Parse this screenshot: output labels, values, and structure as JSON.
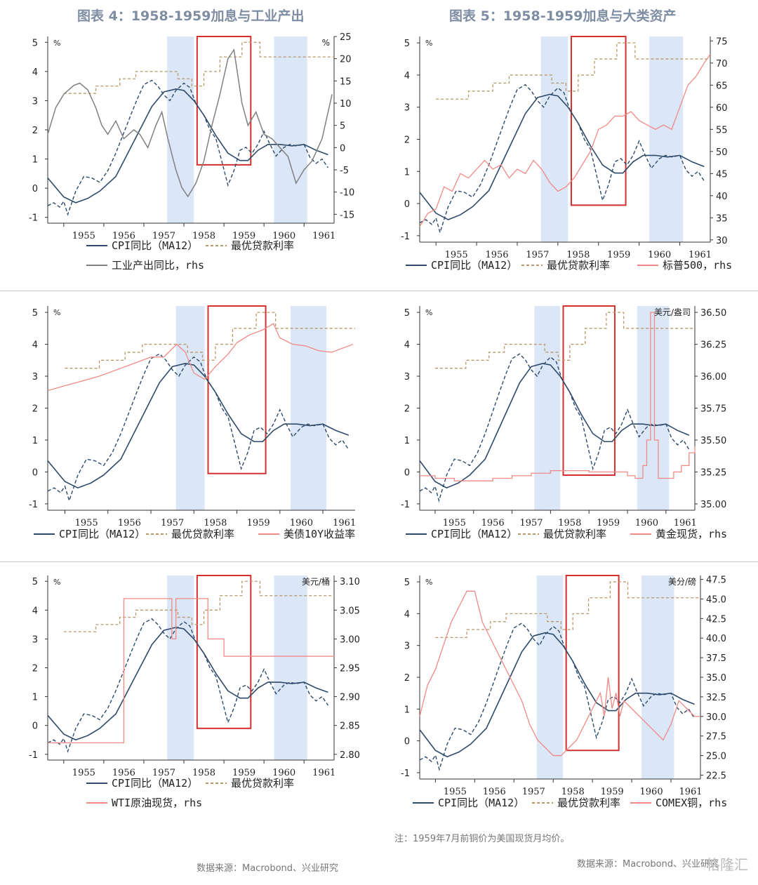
{
  "fig4_title": "图表 4：1958-1959加息与工业产出",
  "fig5_title": "图表 5：1958-1959加息与大类资产",
  "footer_left": "数据来源：Macrobond、兴业研究",
  "note": "注：1959年7月前铜价为美国现货月均价。",
  "footer_right": "数据来源：Macrobond、兴业研究",
  "watermark": "格隆汇",
  "colors": {
    "cpi": "#2e4a6b",
    "rate": "#b89868",
    "gray": "#808080",
    "red_line": "#f08a86",
    "shade": "#dbe6f7",
    "box": "#d32f2f"
  },
  "chart_data": [
    {
      "type": "line",
      "ylabel_left_unit": "%",
      "ylabel_right_unit": "%",
      "ylim": [
        -1.2,
        5.2
      ],
      "y2lim": [
        -17,
        25
      ],
      "yticks": [
        -1,
        0,
        1,
        2,
        3,
        4,
        5
      ],
      "y2ticks": [
        -15,
        -10,
        -5,
        0,
        5,
        10,
        15,
        20,
        25
      ],
      "xticks": [
        "1955",
        "1956",
        "1957",
        "1958",
        "1959",
        "1960",
        "1961"
      ],
      "xlim": [
        1954.6,
        1961.75
      ],
      "recession_shading": [
        [
          1957.58,
          1958.25
        ],
        [
          1960.25,
          1961.08
        ]
      ],
      "highlight_box": {
        "x": [
          1958.33,
          1959.67
        ],
        "y": [
          0.8,
          5.2
        ]
      },
      "series": [
        {
          "name": "CPI同比（MA12）",
          "style": "solid",
          "axis": "left",
          "x": [
            1954.6,
            1955.0,
            1955.3,
            1955.6,
            1955.9,
            1956.3,
            1956.6,
            1956.9,
            1957.2,
            1957.5,
            1957.8,
            1958.0,
            1958.25,
            1958.5,
            1958.8,
            1959.1,
            1959.4,
            1959.6,
            1959.85,
            1960.1,
            1960.4,
            1960.7,
            1961.0,
            1961.3,
            1961.6
          ],
          "y": [
            0.35,
            -0.3,
            -0.5,
            -0.35,
            -0.1,
            0.4,
            1.2,
            2.0,
            2.8,
            3.3,
            3.4,
            3.35,
            3.0,
            2.5,
            1.8,
            1.2,
            0.95,
            0.95,
            1.3,
            1.5,
            1.5,
            1.45,
            1.5,
            1.3,
            1.15
          ]
        },
        {
          "name": "CPI同比",
          "style": "dashed",
          "axis": "left",
          "x": [
            1954.6,
            1954.75,
            1954.9,
            1955.0,
            1955.1,
            1955.3,
            1955.5,
            1955.7,
            1955.9,
            1956.1,
            1956.3,
            1956.5,
            1956.7,
            1956.85,
            1957.0,
            1957.2,
            1957.35,
            1957.5,
            1957.65,
            1957.8,
            1958.0,
            1958.15,
            1958.3,
            1958.5,
            1958.65,
            1958.8,
            1958.95,
            1959.1,
            1959.25,
            1959.4,
            1959.55,
            1959.7,
            1959.85,
            1960.0,
            1960.15,
            1960.3,
            1960.5,
            1960.65,
            1960.8,
            1961.0,
            1961.15,
            1961.3,
            1961.45,
            1961.6
          ],
          "y": [
            -0.6,
            -0.5,
            -0.65,
            -0.45,
            -0.9,
            -0.1,
            0.4,
            0.35,
            0.2,
            0.6,
            1.2,
            1.9,
            2.6,
            3.1,
            3.55,
            3.7,
            3.5,
            3.2,
            3.0,
            3.35,
            3.6,
            3.45,
            2.9,
            2.5,
            2.0,
            1.7,
            0.9,
            0.1,
            0.6,
            1.3,
            1.4,
            1.2,
            1.5,
            1.95,
            1.5,
            1.1,
            1.4,
            1.5,
            1.45,
            1.5,
            1.05,
            0.85,
            1.0,
            0.7
          ]
        },
        {
          "name": "最优贷款利率",
          "style": "dashed-step",
          "axis": "left",
          "x": [
            1955.0,
            1955.6,
            1955.8,
            1956.2,
            1956.4,
            1956.8,
            1957.6,
            1957.85,
            1958.2,
            1958.5,
            1958.9,
            1959.2,
            1959.45,
            1959.9,
            1961.75
          ],
          "y": [
            3.25,
            3.25,
            3.5,
            3.5,
            3.75,
            4.0,
            4.0,
            3.75,
            3.5,
            4.0,
            4.5,
            4.5,
            5.0,
            4.5,
            4.5
          ]
        },
        {
          "name": "工业产出同比，rhs",
          "style": "solid",
          "axis": "right",
          "x": [
            1954.6,
            1954.8,
            1955.0,
            1955.25,
            1955.4,
            1955.6,
            1955.8,
            1955.95,
            1956.1,
            1956.3,
            1956.5,
            1956.75,
            1956.9,
            1957.1,
            1957.3,
            1957.45,
            1957.6,
            1957.8,
            1957.95,
            1958.1,
            1958.3,
            1958.5,
            1958.7,
            1958.9,
            1959.1,
            1959.25,
            1959.45,
            1959.6,
            1959.8,
            1960.0,
            1960.2,
            1960.4,
            1960.6,
            1960.8,
            1961.0,
            1961.2,
            1961.45,
            1961.7
          ],
          "y": [
            3,
            9,
            12,
            14,
            14.5,
            13,
            9,
            5,
            3,
            6,
            2,
            4,
            3,
            0,
            5,
            8,
            2,
            -5,
            -9,
            -11,
            -8,
            -3,
            5,
            12,
            20,
            22,
            10,
            5,
            8,
            3,
            2,
            0,
            -2,
            -8,
            -5,
            -3,
            2,
            12
          ]
        }
      ],
      "legend": [
        "CPI同比（MA12）",
        "最优贷款利率",
        "工业产出同比，rhs"
      ]
    },
    {
      "type": "line",
      "ylim": [
        -1.2,
        5.2
      ],
      "y2lim": [
        29.5,
        76
      ],
      "yticks": [
        -1,
        0,
        1,
        2,
        3,
        4,
        5
      ],
      "y2ticks": [
        30,
        35,
        40,
        45,
        50,
        55,
        60,
        65,
        70,
        75
      ],
      "xticks": [
        "1955",
        "1956",
        "1957",
        "1958",
        "1959",
        "1960",
        "1961"
      ],
      "xlim": [
        1954.6,
        1961.75
      ],
      "recession_shading": [
        [
          1957.58,
          1958.25
        ],
        [
          1960.25,
          1961.08
        ]
      ],
      "highlight_box": {
        "x": [
          1958.33,
          1959.67
        ],
        "y": [
          -0.05,
          5.2
        ]
      },
      "series": [
        {
          "name": "标普500，rhs",
          "style": "solid",
          "axis": "right",
          "x": [
            1954.6,
            1954.8,
            1955.0,
            1955.2,
            1955.4,
            1955.6,
            1955.8,
            1956.0,
            1956.2,
            1956.4,
            1956.6,
            1956.8,
            1957.0,
            1957.2,
            1957.4,
            1957.6,
            1957.8,
            1958.0,
            1958.2,
            1958.4,
            1958.6,
            1958.8,
            1959.0,
            1959.2,
            1959.4,
            1959.6,
            1959.8,
            1960.0,
            1960.2,
            1960.4,
            1960.6,
            1960.8,
            1961.0,
            1961.2,
            1961.4,
            1961.6,
            1961.75
          ],
          "y": [
            33,
            36,
            37,
            42,
            41,
            45,
            44,
            46,
            48,
            46,
            47,
            44,
            46,
            45,
            48,
            46,
            43,
            41,
            42,
            44,
            47,
            50,
            55,
            56,
            58,
            58,
            59,
            57,
            56,
            55,
            56,
            55,
            60,
            65,
            67,
            70,
            72
          ]
        }
      ],
      "legend": [
        "CPI同比（MA12）",
        "最优贷款利率",
        "标普500，rhs"
      ]
    },
    {
      "type": "line",
      "ylim": [
        -1.2,
        5.2
      ],
      "yticks": [
        -1,
        0,
        1,
        2,
        3,
        4,
        5
      ],
      "xticks": [
        "1955",
        "1956",
        "1957",
        "1958",
        "1959",
        "1960",
        "1961"
      ],
      "xlim": [
        1954.6,
        1961.75
      ],
      "recession_shading": [
        [
          1957.58,
          1958.25
        ],
        [
          1960.25,
          1961.08
        ]
      ],
      "highlight_box": {
        "x": [
          1958.33,
          1959.67
        ],
        "y": [
          -0.05,
          5.2
        ]
      },
      "series": [
        {
          "name": "美债10Y收益率",
          "style": "solid",
          "axis": "left",
          "x": [
            1954.6,
            1955.0,
            1955.4,
            1955.8,
            1956.2,
            1956.6,
            1957.0,
            1957.3,
            1957.6,
            1957.8,
            1958.0,
            1958.25,
            1958.5,
            1958.8,
            1959.0,
            1959.3,
            1959.6,
            1959.85,
            1960.0,
            1960.3,
            1960.6,
            1960.9,
            1961.2,
            1961.5,
            1961.7
          ],
          "y": [
            2.55,
            2.7,
            2.85,
            3.0,
            3.2,
            3.4,
            3.6,
            3.6,
            4.0,
            3.75,
            3.1,
            2.9,
            3.3,
            3.7,
            4.05,
            4.3,
            4.45,
            4.65,
            4.2,
            4.0,
            3.95,
            3.8,
            3.75,
            3.9,
            4.0
          ]
        }
      ],
      "legend": [
        "CPI同比（MA12）",
        "最优贷款利率",
        "美债10Y收益率"
      ]
    },
    {
      "type": "line",
      "ylim": [
        -1.2,
        5.2
      ],
      "y2lim": [
        34.95,
        36.55
      ],
      "yticks": [
        -1,
        0,
        1,
        2,
        3,
        4,
        5
      ],
      "y2ticks": [
        "35.00",
        "35.25",
        "35.50",
        "35.75",
        "36.00",
        "36.25",
        "36.50"
      ],
      "y2_unit": "美元/盎司",
      "xticks": [
        "1955",
        "1956",
        "1957",
        "1958",
        "1959",
        "1960",
        "1961"
      ],
      "xlim": [
        1954.6,
        1961.75
      ],
      "recession_shading": [
        [
          1957.58,
          1958.25
        ],
        [
          1960.25,
          1961.08
        ]
      ],
      "highlight_box": {
        "x": [
          1958.33,
          1959.67
        ],
        "y": [
          -0.1,
          5.2
        ]
      },
      "series": [
        {
          "name": "黄金现货，rhs",
          "style": "step",
          "axis": "right",
          "x": [
            1954.6,
            1955.0,
            1955.5,
            1956.0,
            1956.5,
            1957.0,
            1957.5,
            1958.0,
            1958.5,
            1959.0,
            1959.5,
            1960.0,
            1960.2,
            1960.4,
            1960.5,
            1960.6,
            1960.7,
            1960.8,
            1961.0,
            1961.2,
            1961.4,
            1961.6,
            1961.75
          ],
          "y": [
            35.22,
            35.2,
            35.18,
            35.18,
            35.2,
            35.22,
            35.24,
            35.26,
            35.26,
            35.25,
            35.25,
            35.22,
            35.2,
            35.3,
            35.5,
            36.5,
            35.5,
            35.2,
            35.2,
            35.25,
            35.3,
            35.4,
            35.45
          ]
        }
      ],
      "legend": [
        "CPI同比（MA12）",
        "最优贷款利率",
        "黄金现货，rhs"
      ]
    },
    {
      "type": "line",
      "ylim": [
        -1.2,
        5.2
      ],
      "y2lim": [
        2.79,
        3.11
      ],
      "yticks": [
        -1,
        0,
        1,
        2,
        3,
        4,
        5
      ],
      "y2ticks": [
        "2.80",
        "2.85",
        "2.90",
        "2.95",
        "3.00",
        "3.05",
        "3.10"
      ],
      "y2_unit": "美元/桶",
      "xticks": [
        "1955",
        "1956",
        "1957",
        "1958",
        "1959",
        "1960",
        "1961"
      ],
      "xlim": [
        1954.6,
        1961.75
      ],
      "recession_shading": [
        [
          1957.58,
          1958.25
        ],
        [
          1960.25,
          1961.08
        ]
      ],
      "highlight_box": {
        "x": [
          1958.33,
          1959.67
        ],
        "y": [
          -0.1,
          5.2
        ]
      },
      "series": [
        {
          "name": "WTI原油现货，rhs",
          "style": "step",
          "axis": "right",
          "x": [
            1954.6,
            1956.3,
            1956.5,
            1957.6,
            1957.7,
            1957.8,
            1957.85,
            1957.9,
            1958.25,
            1958.5,
            1958.6,
            1958.9,
            1959.0,
            1961.75
          ],
          "y": [
            2.82,
            2.82,
            3.07,
            3.07,
            3.0,
            3.07,
            3.07,
            3.07,
            3.07,
            3.07,
            3.0,
            3.0,
            2.97,
            2.97
          ]
        }
      ],
      "legend": [
        "CPI同比（MA12）",
        "最优贷款利率",
        "WTI原油现货，rhs"
      ]
    },
    {
      "type": "line",
      "ylim": [
        -1.2,
        5.2
      ],
      "y2lim": [
        22,
        48
      ],
      "yticks": [
        -1,
        0,
        1,
        2,
        3,
        4,
        5
      ],
      "y2ticks": [
        "22.5",
        "25.0",
        "27.5",
        "30.0",
        "32.5",
        "35.0",
        "37.5",
        "40.0",
        "42.5",
        "45.0",
        "47.5"
      ],
      "y2_unit": "美分/磅",
      "xticks": [
        "1955",
        "1956",
        "1957",
        "1958",
        "1959",
        "1960",
        "1961"
      ],
      "xlim": [
        1954.6,
        1961.75
      ],
      "recession_shading": [
        [
          1957.58,
          1958.25
        ],
        [
          1960.25,
          1961.08
        ]
      ],
      "highlight_box": {
        "x": [
          1958.33,
          1959.67
        ],
        "y": [
          -0.3,
          5.2
        ]
      },
      "series": [
        {
          "name": "COMEX铜，rhs",
          "style": "solid",
          "axis": "right",
          "x": [
            1954.6,
            1954.8,
            1955.0,
            1955.2,
            1955.4,
            1955.6,
            1955.8,
            1956.0,
            1956.2,
            1956.4,
            1956.6,
            1956.8,
            1957.0,
            1957.2,
            1957.4,
            1957.6,
            1957.8,
            1958.0,
            1958.2,
            1958.4,
            1958.6,
            1958.8,
            1959.0,
            1959.2,
            1959.3,
            1959.4,
            1959.5,
            1959.6,
            1959.7,
            1959.8,
            1960.0,
            1960.2,
            1960.4,
            1960.6,
            1960.8,
            1961.0,
            1961.2,
            1961.4,
            1961.6,
            1961.75
          ],
          "y": [
            30,
            34,
            36,
            39,
            42,
            44,
            46,
            46,
            42,
            40,
            38,
            36,
            34,
            32,
            29,
            27,
            26,
            25,
            25,
            26,
            27,
            29,
            31,
            33,
            30,
            35,
            31,
            33,
            30,
            32,
            31,
            30,
            29,
            28,
            27,
            29,
            32,
            31,
            30,
            30
          ]
        }
      ],
      "legend": [
        "CPI同比（MA12）",
        "最优贷款利率",
        "COMEX铜，rhs"
      ]
    }
  ]
}
